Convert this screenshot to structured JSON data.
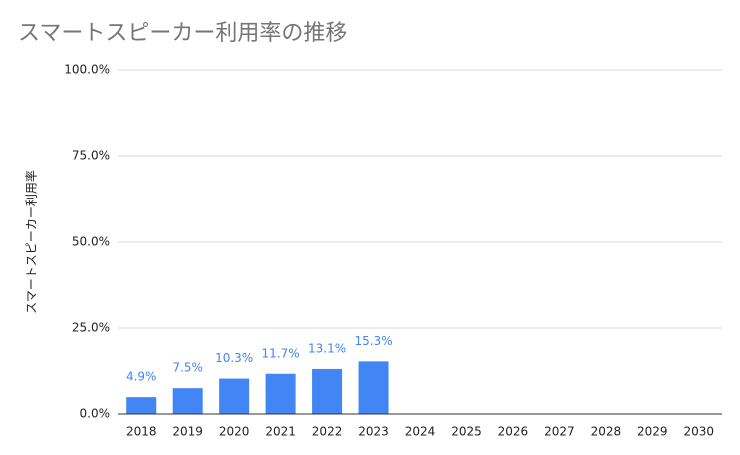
{
  "chart_data": {
    "type": "bar",
    "title": "スマートスピーカー利用率の推移",
    "y_label": "スマートスピーカー利用率",
    "categories": [
      "2018",
      "2019",
      "2020",
      "2021",
      "2022",
      "2023",
      "2024",
      "2025",
      "2026",
      "2027",
      "2028",
      "2029",
      "2030"
    ],
    "values": [
      4.9,
      7.5,
      10.3,
      11.7,
      13.1,
      15.3,
      null,
      null,
      null,
      null,
      null,
      null,
      null
    ],
    "value_labels": [
      "4.9%",
      "7.5%",
      "10.3%",
      "11.7%",
      "13.1%",
      "15.3%",
      null,
      null,
      null,
      null,
      null,
      null,
      null
    ],
    "color": "#4285f4",
    "ylim": [
      0,
      100
    ],
    "yticks": [
      {
        "value": 0,
        "label": "0.0%"
      },
      {
        "value": 25,
        "label": "25.0%"
      },
      {
        "value": 50,
        "label": "50.0%"
      },
      {
        "value": 75,
        "label": "75.0%"
      },
      {
        "value": 100,
        "label": "100.0%"
      }
    ],
    "grid": true
  }
}
